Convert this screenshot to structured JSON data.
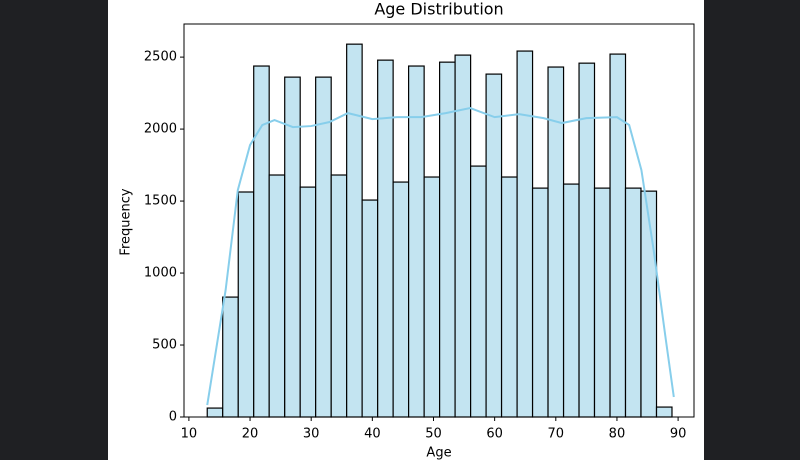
{
  "chart_data": {
    "type": "histogram",
    "title": "Age Distribution",
    "x_label": "Age",
    "y_label": "Frequency",
    "bins": [
      13,
      15.53,
      18.07,
      20.6,
      23.13,
      25.67,
      28.2,
      30.73,
      33.27,
      35.8,
      38.33,
      40.87,
      43.4,
      45.93,
      48.47,
      51,
      53.53,
      56.07,
      58.6,
      61.13,
      63.67,
      66.2,
      68.73,
      71.27,
      73.8,
      76.33,
      78.87,
      81.4,
      83.93,
      86.47,
      89
    ],
    "values": [
      62,
      833,
      1563,
      2438,
      1681,
      2361,
      1597,
      2361,
      1681,
      2590,
      1507,
      2479,
      1632,
      2438,
      1667,
      2465,
      2514,
      1743,
      2382,
      1667,
      2542,
      1590,
      2431,
      1618,
      2458,
      1590,
      2521,
      1590,
      1569,
      69
    ],
    "color": "#c3e4f1",
    "edgecolor": "#000000",
    "kde": {
      "color": "#87ceeb",
      "x": [
        13,
        16,
        18,
        20,
        22,
        24,
        27,
        30,
        33,
        36,
        40,
        44,
        48,
        52,
        56,
        60,
        64,
        68,
        71,
        75,
        80,
        82,
        84,
        86,
        88,
        89.3
      ],
      "values": [
        83,
        880,
        1576,
        1889,
        2028,
        2063,
        2014,
        2021,
        2049,
        2111,
        2069,
        2083,
        2083,
        2111,
        2146,
        2083,
        2104,
        2076,
        2042,
        2076,
        2083,
        2028,
        1715,
        1160,
        535,
        139
      ]
    },
    "xlim": [
      9.2,
      92.6
    ],
    "xticks": [
      10,
      20,
      30,
      40,
      50,
      60,
      70,
      80,
      90
    ],
    "ylim": [
      0,
      2730
    ],
    "yticks": [
      0,
      500,
      1000,
      1500,
      2000,
      2500
    ]
  }
}
